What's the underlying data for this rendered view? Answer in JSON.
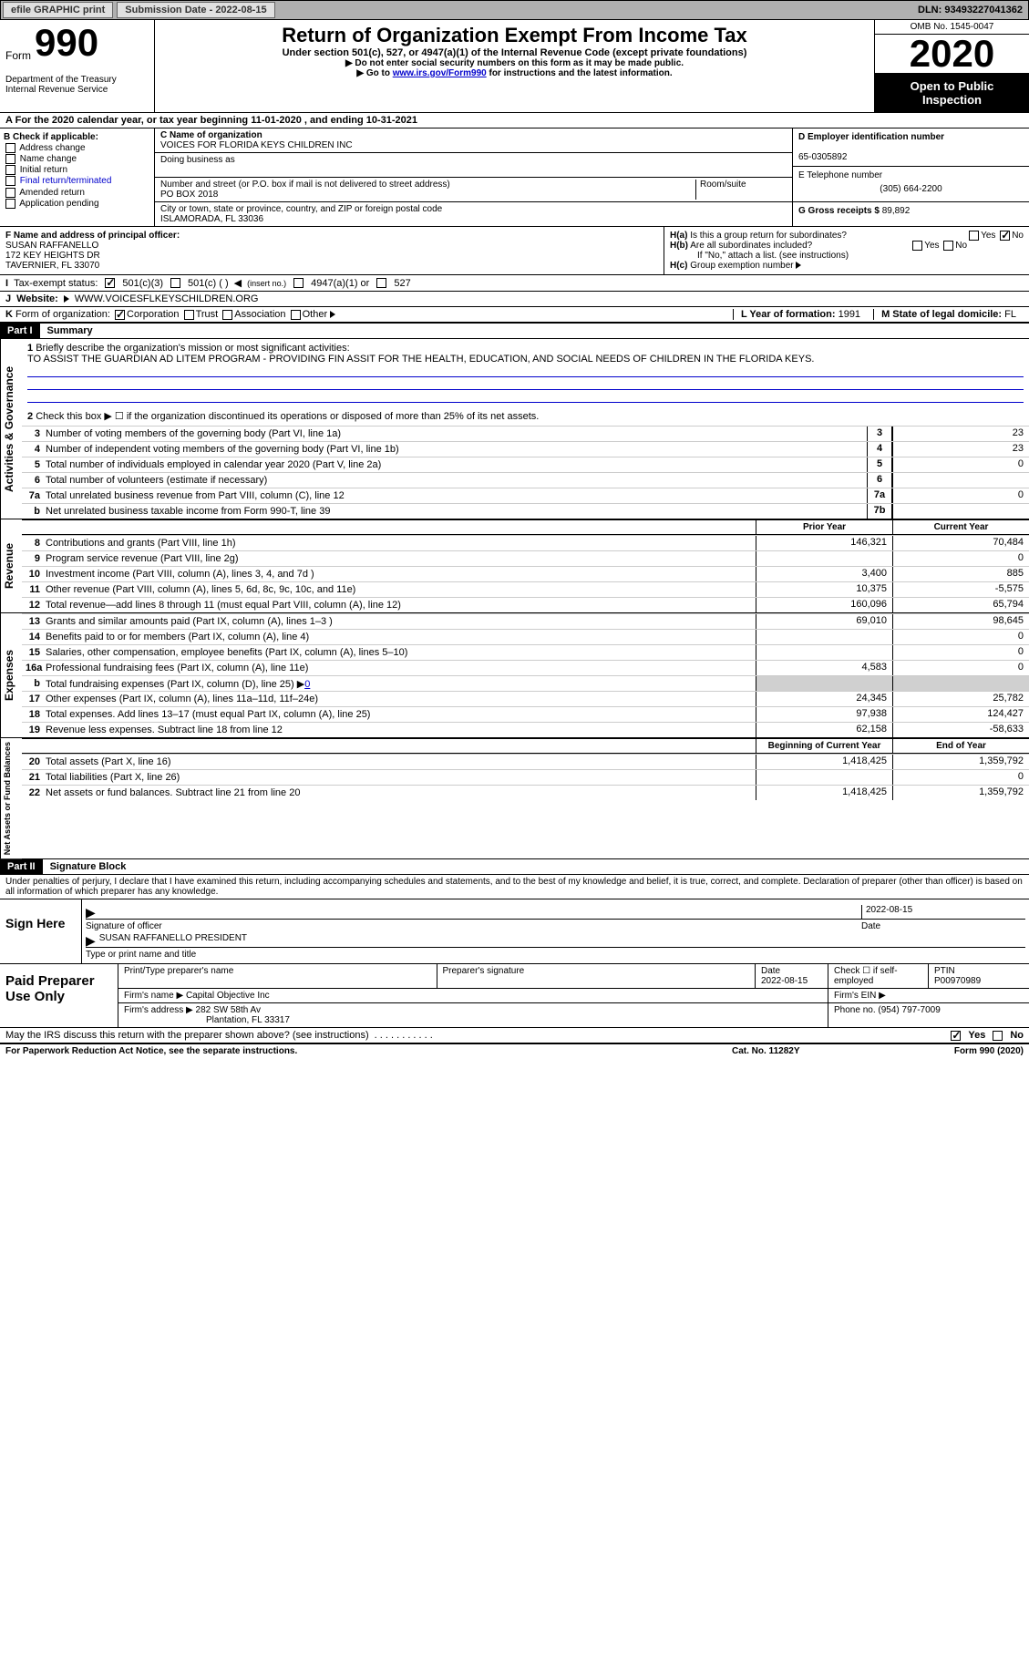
{
  "topbar": {
    "efile": "efile GRAPHIC print",
    "submission_label": "Submission Date - 2022-08-15",
    "dln": "DLN: 93493227041362"
  },
  "header": {
    "form_word": "Form",
    "form_num": "990",
    "title": "Return of Organization Exempt From Income Tax",
    "subtitle": "Under section 501(c), 527, or 4947(a)(1) of the Internal Revenue Code (except private foundations)",
    "note1": "Do not enter social security numbers on this form as it may be made public.",
    "note2_pre": "Go to ",
    "note2_link": "www.irs.gov/Form990",
    "note2_post": " for instructions and the latest information.",
    "dept": "Department of the Treasury\nInternal Revenue Service",
    "omb": "OMB No. 1545-0047",
    "year": "2020",
    "inspection": "Open to Public Inspection"
  },
  "period": "For the 2020 calendar year, or tax year beginning 11-01-2020    , and ending 10-31-2021",
  "boxB": {
    "label": "Check if applicable:",
    "items": [
      "Address change",
      "Name change",
      "Initial return",
      "Final return/terminated",
      "Amended return",
      "Application pending"
    ]
  },
  "boxC": {
    "name_label": "C Name of organization",
    "name": "VOICES FOR FLORIDA KEYS CHILDREN INC",
    "dba_label": "Doing business as",
    "street_label": "Number and street (or P.O. box if mail is not delivered to street address)",
    "street": "PO BOX 2018",
    "room_label": "Room/suite",
    "city_label": "City or town, state or province, country, and ZIP or foreign postal code",
    "city": "ISLAMORADA, FL  33036"
  },
  "boxD": {
    "label": "D Employer identification number",
    "value": "65-0305892"
  },
  "boxE": {
    "label": "E Telephone number",
    "value": "(305) 664-2200"
  },
  "boxG": {
    "label": "G Gross receipts $",
    "value": "89,892"
  },
  "boxF": {
    "label": "F  Name and address of principal officer:",
    "name": "SUSAN RAFFANELLO",
    "addr1": "172 KEY HEIGHTS DR",
    "addr2": "TAVERNIER, FL  33070"
  },
  "boxH": {
    "ha": "Is this a group return for subordinates?",
    "hb": "Are all subordinates included?",
    "hb_note": "If \"No,\" attach a list. (see instructions)",
    "hc": "Group exemption number",
    "yes": "Yes",
    "no": "No"
  },
  "boxI": {
    "label": "Tax-exempt status:",
    "opt1": "501(c)(3)",
    "opt2": "501(c) (  )",
    "opt2b": "(insert no.)",
    "opt3": "4947(a)(1) or",
    "opt4": "527"
  },
  "boxJ": {
    "label": "Website:",
    "value": "WWW.VOICESFLKEYSCHILDREN.ORG"
  },
  "boxK": {
    "label": "Form of organization:",
    "opts": [
      "Corporation",
      "Trust",
      "Association",
      "Other"
    ]
  },
  "boxL": {
    "label": "L Year of formation:",
    "value": "1991"
  },
  "boxM": {
    "label": "M State of legal domicile:",
    "value": "FL"
  },
  "part1": {
    "bar": "Part I",
    "title": "Summary"
  },
  "summary": {
    "q1_label": "Briefly describe the organization's mission or most significant activities:",
    "q1_text": "TO ASSIST THE GUARDIAN AD LITEM PROGRAM - PROVIDING FIN ASSIT FOR THE HEALTH, EDUCATION, AND SOCIAL NEEDS OF CHILDREN IN THE FLORIDA KEYS.",
    "q2": "Check this box ▶ ☐  if the organization discontinued its operations or disposed of more than 25% of its net assets.",
    "lines": [
      {
        "n": "3",
        "d": "Number of voting members of the governing body (Part VI, line 1a)",
        "idx": "3",
        "v": "23"
      },
      {
        "n": "4",
        "d": "Number of independent voting members of the governing body (Part VI, line 1b)",
        "idx": "4",
        "v": "23"
      },
      {
        "n": "5",
        "d": "Total number of individuals employed in calendar year 2020 (Part V, line 2a)",
        "idx": "5",
        "v": "0"
      },
      {
        "n": "6",
        "d": "Total number of volunteers (estimate if necessary)",
        "idx": "6",
        "v": ""
      },
      {
        "n": "7a",
        "d": "Total unrelated business revenue from Part VIII, column (C), line 12",
        "idx": "7a",
        "v": "0"
      },
      {
        "n": "b",
        "d": "Net unrelated business taxable income from Form 990-T, line 39",
        "idx": "7b",
        "v": ""
      }
    ],
    "col_prior": "Prior Year",
    "col_current": "Current Year",
    "rev": [
      {
        "n": "8",
        "d": "Contributions and grants (Part VIII, line 1h)",
        "p": "146,321",
        "c": "70,484"
      },
      {
        "n": "9",
        "d": "Program service revenue (Part VIII, line 2g)",
        "p": "",
        "c": "0"
      },
      {
        "n": "10",
        "d": "Investment income (Part VIII, column (A), lines 3, 4, and 7d )",
        "p": "3,400",
        "c": "885"
      },
      {
        "n": "11",
        "d": "Other revenue (Part VIII, column (A), lines 5, 6d, 8c, 9c, 10c, and 11e)",
        "p": "10,375",
        "c": "-5,575"
      },
      {
        "n": "12",
        "d": "Total revenue—add lines 8 through 11 (must equal Part VIII, column (A), line 12)",
        "p": "160,096",
        "c": "65,794"
      }
    ],
    "exp": [
      {
        "n": "13",
        "d": "Grants and similar amounts paid (Part IX, column (A), lines 1–3 )",
        "p": "69,010",
        "c": "98,645"
      },
      {
        "n": "14",
        "d": "Benefits paid to or for members (Part IX, column (A), line 4)",
        "p": "",
        "c": "0"
      },
      {
        "n": "15",
        "d": "Salaries, other compensation, employee benefits (Part IX, column (A), lines 5–10)",
        "p": "",
        "c": "0"
      },
      {
        "n": "16a",
        "d": "Professional fundraising fees (Part IX, column (A), line 11e)",
        "p": "4,583",
        "c": "0"
      }
    ],
    "exp_b_pre": "Total fundraising expenses (Part IX, column (D), line 25) ▶",
    "exp_b_val": "0",
    "exp2": [
      {
        "n": "17",
        "d": "Other expenses (Part IX, column (A), lines 11a–11d, 11f–24e)",
        "p": "24,345",
        "c": "25,782"
      },
      {
        "n": "18",
        "d": "Total expenses. Add lines 13–17 (must equal Part IX, column (A), line 25)",
        "p": "97,938",
        "c": "124,427"
      },
      {
        "n": "19",
        "d": "Revenue less expenses. Subtract line 18 from line 12",
        "p": "62,158",
        "c": "-58,633"
      }
    ],
    "col_begin": "Beginning of Current Year",
    "col_end": "End of Year",
    "net": [
      {
        "n": "20",
        "d": "Total assets (Part X, line 16)",
        "p": "1,418,425",
        "c": "1,359,792"
      },
      {
        "n": "21",
        "d": "Total liabilities (Part X, line 26)",
        "p": "",
        "c": "0"
      },
      {
        "n": "22",
        "d": "Net assets or fund balances. Subtract line 21 from line 20",
        "p": "1,418,425",
        "c": "1,359,792"
      }
    ]
  },
  "sides": {
    "gov": "Activities & Governance",
    "rev": "Revenue",
    "exp": "Expenses",
    "net": "Net Assets or Fund Balances"
  },
  "part2": {
    "bar": "Part II",
    "title": "Signature Block"
  },
  "sig": {
    "decl": "Under penalties of perjury, I declare that I have examined this return, including accompanying schedules and statements, and to the best of my knowledge and belief, it is true, correct, and complete. Declaration of preparer (other than officer) is based on all information of which preparer has any knowledge.",
    "sign_here": "Sign Here",
    "sig_label": "Signature of officer",
    "date_label": "Date",
    "date": "2022-08-15",
    "name": "SUSAN RAFFANELLO  PRESIDENT",
    "name_label": "Type or print name and title"
  },
  "prep": {
    "title": "Paid Preparer Use Only",
    "h1": "Print/Type preparer's name",
    "h2": "Preparer's signature",
    "h3": "Date",
    "date": "2022-08-15",
    "h4": "Check ☐ if self-employed",
    "h5": "PTIN",
    "ptin": "P00970989",
    "firm_name_label": "Firm's name   ▶",
    "firm_name": "Capital Objective Inc",
    "firm_ein_label": "Firm's EIN ▶",
    "firm_addr_label": "Firm's address ▶",
    "firm_addr": "282 SW 58th Av",
    "firm_addr2": "Plantation, FL  33317",
    "phone_label": "Phone no.",
    "phone": "(954) 797-7009"
  },
  "discuss": "May the IRS discuss this return with the preparer shown above? (see instructions)",
  "footer": {
    "l": "For Paperwork Reduction Act Notice, see the separate instructions.",
    "m": "Cat. No. 11282Y",
    "r": "Form 990 (2020)"
  }
}
